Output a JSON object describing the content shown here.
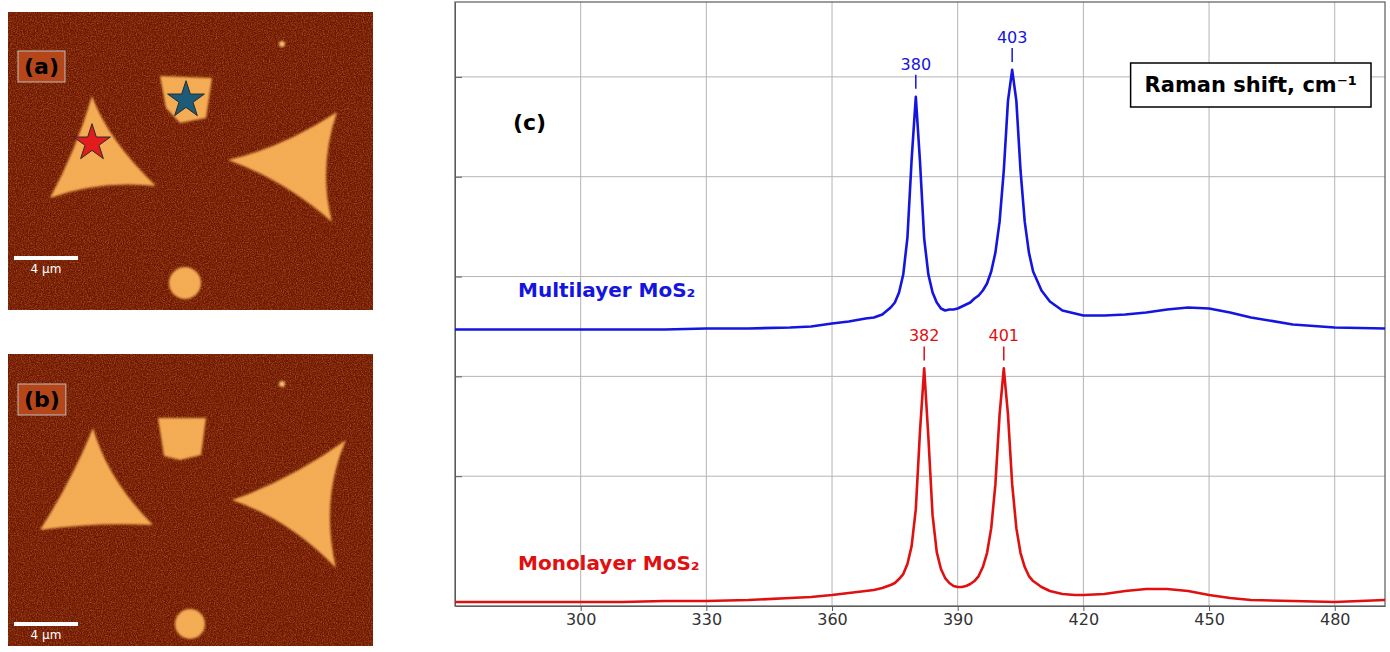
{
  "maps": [
    {
      "label": "(a)",
      "scale_bar": "4 µm"
    },
    {
      "label": "(b)",
      "scale_bar": "4 µm"
    }
  ],
  "chart_data": {
    "type": "line",
    "title": "(c)",
    "xlabel": "Raman shift, cm⁻¹",
    "x": [
      270,
      280,
      290,
      300,
      310,
      320,
      330,
      340,
      350,
      355,
      360,
      364,
      368,
      370,
      372,
      374,
      375,
      376,
      377,
      378,
      379,
      380,
      381,
      382,
      383,
      384,
      385,
      386,
      387,
      388,
      389,
      390,
      391,
      392,
      393,
      394,
      395,
      396,
      397,
      398,
      399,
      400,
      401,
      402,
      403,
      404,
      405,
      406,
      407,
      408,
      410,
      412,
      415,
      418,
      420,
      425,
      430,
      435,
      440,
      445,
      450,
      455,
      460,
      470,
      480,
      492
    ],
    "series": [
      {
        "name": "Multilayer MoS₂",
        "color": "#1515e0",
        "values": [
          2.47,
          2.47,
          2.47,
          2.47,
          2.47,
          2.47,
          2.48,
          2.48,
          2.49,
          2.5,
          2.53,
          2.55,
          2.58,
          2.59,
          2.62,
          2.69,
          2.74,
          2.84,
          3.02,
          3.39,
          4.17,
          4.8,
          4.15,
          3.38,
          3.02,
          2.84,
          2.74,
          2.68,
          2.66,
          2.67,
          2.67,
          2.68,
          2.7,
          2.72,
          2.74,
          2.78,
          2.81,
          2.86,
          2.93,
          3.05,
          3.24,
          3.55,
          4.06,
          4.76,
          5.07,
          4.76,
          4.06,
          3.55,
          3.24,
          3.05,
          2.86,
          2.75,
          2.66,
          2.63,
          2.61,
          2.61,
          2.62,
          2.64,
          2.67,
          2.69,
          2.68,
          2.64,
          2.59,
          2.52,
          2.49,
          2.48
        ],
        "annotations": [
          {
            "x": 380,
            "text": "380"
          },
          {
            "x": 403,
            "text": "403"
          }
        ]
      },
      {
        "name": "Monolayer MoS₂",
        "color": "#e01010",
        "values": [
          -0.26,
          -0.26,
          -0.26,
          -0.26,
          -0.26,
          -0.25,
          -0.25,
          -0.24,
          -0.22,
          -0.21,
          -0.19,
          -0.17,
          -0.15,
          -0.14,
          -0.12,
          -0.09,
          -0.07,
          -0.03,
          0.02,
          0.12,
          0.3,
          0.67,
          1.45,
          2.08,
          1.39,
          0.61,
          0.24,
          0.07,
          -0.02,
          -0.07,
          -0.1,
          -0.11,
          -0.11,
          -0.1,
          -0.08,
          -0.05,
          0.0,
          0.09,
          0.23,
          0.48,
          0.92,
          1.62,
          2.08,
          1.62,
          0.92,
          0.48,
          0.23,
          0.09,
          0.0,
          -0.05,
          -0.11,
          -0.15,
          -0.18,
          -0.19,
          -0.19,
          -0.18,
          -0.15,
          -0.13,
          -0.13,
          -0.15,
          -0.19,
          -0.22,
          -0.24,
          -0.25,
          -0.26,
          -0.24
        ],
        "annotations": [
          {
            "x": 382,
            "text": "382"
          },
          {
            "x": 401,
            "text": "401"
          }
        ]
      }
    ],
    "xlim": [
      270,
      492
    ],
    "ylim": [
      -0.3,
      5.75
    ],
    "xticks": [
      300,
      330,
      360,
      390,
      420,
      450,
      480
    ],
    "yticks": [
      1,
      2,
      3,
      4,
      5
    ],
    "grid": true,
    "tick_labels": "x"
  }
}
